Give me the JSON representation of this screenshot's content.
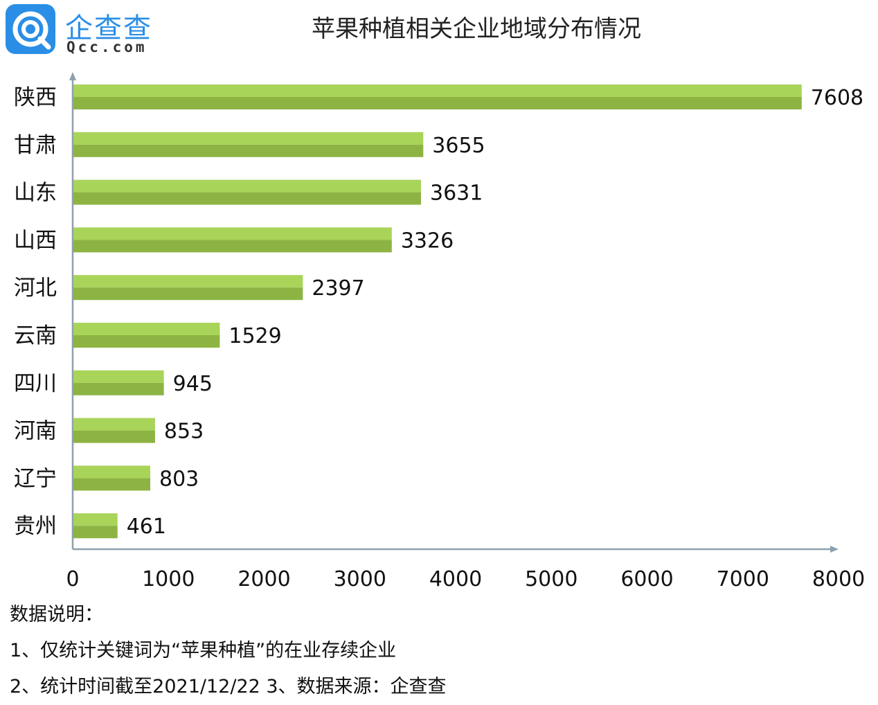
{
  "logo": {
    "name": "企查查",
    "domain": "Qcc.com"
  },
  "colors": {
    "bar_top": "#a9d45a",
    "bar_bottom": "#8db443",
    "axis": "#8ea0ad",
    "logo_blue": "#2a8ee6"
  },
  "chart_data": {
    "type": "bar",
    "orientation": "horizontal",
    "title": "苹果种植相关企业地域分布情况",
    "categories": [
      "陕西",
      "甘肃",
      "山东",
      "山西",
      "河北",
      "云南",
      "四川",
      "河南",
      "辽宁",
      "贵州"
    ],
    "values": [
      7608,
      3655,
      3631,
      3326,
      2397,
      1529,
      945,
      853,
      803,
      461
    ],
    "xlim": [
      0,
      8000
    ],
    "xticks": [
      0,
      1000,
      2000,
      3000,
      4000,
      5000,
      6000,
      7000,
      8000
    ],
    "grid": false,
    "legend": "none",
    "data_labels": true
  },
  "notes": {
    "heading": "数据说明：",
    "line1": "1、仅统计关键词为“苹果种植”的在业存续企业",
    "line2": "2、统计时间截至2021/12/22  3、数据来源：企查查"
  }
}
